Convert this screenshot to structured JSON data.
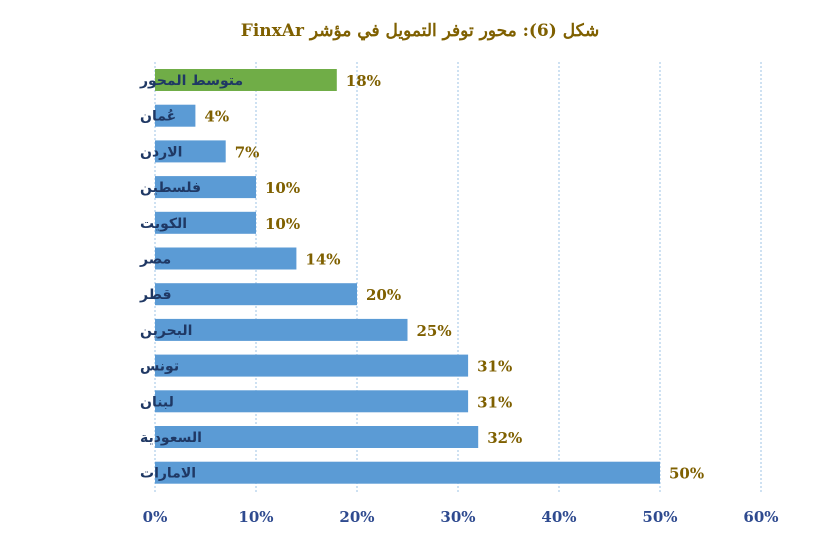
{
  "chart_data": {
    "type": "bar",
    "orientation": "horizontal",
    "title": "شكل (6): محور توفر التمويل في مؤشر FinxAr",
    "categories": [
      "متوسط المحور",
      "عُمان",
      "الاردن",
      "فلسطين",
      "الكويت",
      "مصر",
      "قطر",
      "البحرين",
      "تونس",
      "لبنان",
      "السعودية",
      "الامارات"
    ],
    "values": [
      18,
      4,
      7,
      10,
      10,
      14,
      20,
      25,
      31,
      31,
      32,
      50
    ],
    "value_labels": [
      "18%",
      "4%",
      "7%",
      "10%",
      "10%",
      "14%",
      "20%",
      "25%",
      "31%",
      "31%",
      "32%",
      "50%"
    ],
    "highlight_index": 0,
    "xlim": [
      0,
      60
    ],
    "xticks": [
      0,
      10,
      20,
      30,
      40,
      50,
      60
    ],
    "xtick_labels": [
      "0%",
      "10%",
      "20%",
      "30%",
      "40%",
      "50%",
      "60%"
    ],
    "grid": "vertical-dotted",
    "legend": "none",
    "colors": {
      "bar": "#5b9bd5",
      "highlight": "#70ad47",
      "title": "#7f6000",
      "category_text": "#1f3864",
      "value_text": "#7f6000",
      "tick_text": "#2e4a8f"
    }
  }
}
